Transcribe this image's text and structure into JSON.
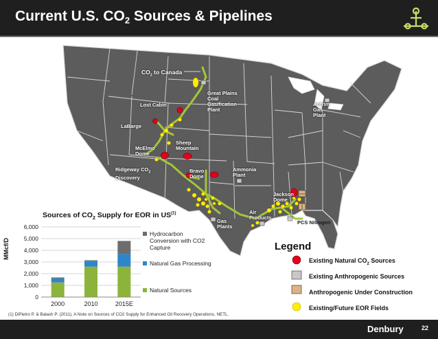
{
  "slide": {
    "title_pre": "Current U.S. CO",
    "title_sub": "2",
    "title_post": " Sources & Pipelines",
    "page_number": "22",
    "brand": "Denbury",
    "footnote": "(1)  DiPietro P. & Balash P. (2011).  A Note on Sources of CO2 Supply for Enhanced Oil Recovery Operations, NETL."
  },
  "map_labels": {
    "co2_canada_pre": "CO",
    "co2_canada_sub": "2",
    "co2_canada_post": " to Canada",
    "great_plains": "Great Plains\nCoal\nGasification\nPlant",
    "antrim": "Antrim\nGas\nPlant",
    "lost_cabin": "Lost Cabin",
    "labarge": "LaBarge",
    "sheep_mountain": "Sheep\nMountain",
    "mcelmo": "McElmo\nDome",
    "ridgeway_pre": "Ridgeway CO",
    "ridgeway_sub": "2",
    "ridgeway_post": "\nDiscovery",
    "bravo": "Bravo\nDome",
    "ammonia": "Ammonia\nPlant",
    "jackson": "Jackson\nDome",
    "air_products": "Air\nProducts",
    "pcs_nitrogen": "PCS Nitrogen",
    "gas_plants": "Gas\nPlants"
  },
  "legend": {
    "title": "Legend",
    "natural_pre": "Existing Natural CO",
    "natural_sub": "2",
    "natural_post": " Sources",
    "anthropogenic": "Existing Anthropogenic Sources",
    "construction": "Anthropogenic Under Construction",
    "eor": "Existing/Future EOR Fields",
    "colors": {
      "natural": "#e3001b",
      "eor": "#ffee00",
      "pipeline": "#a4c639"
    }
  },
  "chart_data": {
    "type": "bar",
    "stacked": true,
    "title_pre": "Sources of CO",
    "title_sub": "2",
    "title_post": " Supply for EOR in US",
    "title_sup": "(1)",
    "ylabel": "MMcf/D",
    "categories": [
      "2000",
      "2010",
      "2015E"
    ],
    "ylim": [
      0,
      6000
    ],
    "yticks": [
      "0",
      "1,000",
      "2,000",
      "3,000",
      "4,000",
      "5,000",
      "6,000"
    ],
    "grid": true,
    "legend_position": "right",
    "series": [
      {
        "name": "Natural Sources",
        "color": "#8db43a",
        "values": [
          1250,
          2600,
          2600
        ]
      },
      {
        "name": "Natural Gas Processing",
        "color": "#2e86c8",
        "values": [
          350,
          500,
          1100
        ]
      },
      {
        "name": "Hydrocarbon Conversion with CO2 Capture",
        "color": "#6d6d6d",
        "values": [
          80,
          50,
          1100
        ]
      }
    ]
  }
}
